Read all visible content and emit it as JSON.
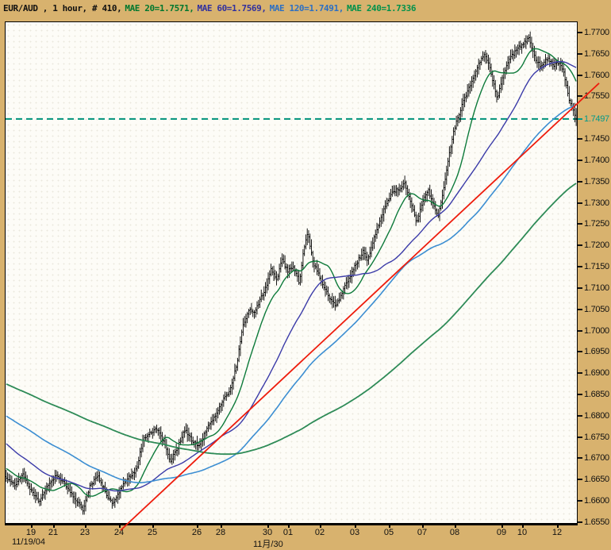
{
  "title": {
    "symbol": "EUR/AUD , 1 hour, # 410,",
    "ma_labels": [
      {
        "text": "MAE 20=1.7571,",
        "color": "#00772e"
      },
      {
        "text": "MAE 60=1.7569,",
        "color": "#30309e"
      },
      {
        "text": "MAE 120=1.7491,",
        "color": "#2b6fc4"
      },
      {
        "text": "MAE 240=1.7336",
        "color": "#00914b"
      }
    ]
  },
  "chart_data": {
    "type": "candlestick",
    "instrument": "EUR/AUD",
    "timeframe": "1 hour",
    "bars_count": 410,
    "y_axis": {
      "value_at_top": 1.77242,
      "value_at_bottom": 1.6548,
      "ticks": [
        {
          "label": "1.7700",
          "value": 1.77,
          "color": "#111111"
        },
        {
          "label": "1.7650",
          "value": 1.765,
          "color": "#111111"
        },
        {
          "label": "1.7600",
          "value": 1.76,
          "color": "#111111"
        },
        {
          "label": "1.7550",
          "value": 1.755,
          "color": "#111111"
        },
        {
          "label": "1.7497",
          "value": 1.7497,
          "color": "#00998a"
        },
        {
          "label": "1.7450",
          "value": 1.745,
          "color": "#111111"
        },
        {
          "label": "1.7400",
          "value": 1.74,
          "color": "#111111"
        },
        {
          "label": "1.7350",
          "value": 1.735,
          "color": "#111111"
        },
        {
          "label": "1.7300",
          "value": 1.73,
          "color": "#111111"
        },
        {
          "label": "1.7250",
          "value": 1.725,
          "color": "#111111"
        },
        {
          "label": "1.7200",
          "value": 1.72,
          "color": "#111111"
        },
        {
          "label": "1.7150",
          "value": 1.715,
          "color": "#111111"
        },
        {
          "label": "1.7100",
          "value": 1.71,
          "color": "#111111"
        },
        {
          "label": "1.7050",
          "value": 1.705,
          "color": "#111111"
        },
        {
          "label": "1.7000",
          "value": 1.7,
          "color": "#111111"
        },
        {
          "label": "1.6950",
          "value": 1.695,
          "color": "#111111"
        },
        {
          "label": "1.6900",
          "value": 1.69,
          "color": "#111111"
        },
        {
          "label": "1.6850",
          "value": 1.685,
          "color": "#111111"
        },
        {
          "label": "1.6800",
          "value": 1.68,
          "color": "#111111"
        },
        {
          "label": "1.6750",
          "value": 1.675,
          "color": "#111111"
        },
        {
          "label": "1.6700",
          "value": 1.67,
          "color": "#111111"
        },
        {
          "label": "1.6650",
          "value": 1.665,
          "color": "#111111"
        },
        {
          "label": "1.6600",
          "value": 1.66,
          "color": "#111111"
        },
        {
          "label": "1.6550",
          "value": 1.655,
          "color": "#111111"
        }
      ]
    },
    "x_axis": {
      "labels": [
        {
          "text": "19",
          "f": 0.044
        },
        {
          "text": "21",
          "f": 0.083
        },
        {
          "text": "23",
          "f": 0.139
        },
        {
          "text": "24",
          "f": 0.199
        },
        {
          "text": "25",
          "f": 0.257
        },
        {
          "text": "26",
          "f": 0.335
        },
        {
          "text": "28",
          "f": 0.376
        },
        {
          "text": "30",
          "f": 0.458
        },
        {
          "text": "01",
          "f": 0.494
        },
        {
          "text": "02",
          "f": 0.55
        },
        {
          "text": "03",
          "f": 0.611
        },
        {
          "text": "05",
          "f": 0.671
        },
        {
          "text": "07",
          "f": 0.729
        },
        {
          "text": "08",
          "f": 0.786
        },
        {
          "text": "09",
          "f": 0.868
        },
        {
          "text": "10",
          "f": 0.904
        },
        {
          "text": "12",
          "f": 0.965
        }
      ],
      "sub_labels": [
        {
          "text": "11/19/04",
          "f": 0.044
        },
        {
          "text": "11月/30",
          "f": 0.458
        }
      ]
    },
    "dashed_level": {
      "value": 1.7497,
      "color": "#00927a"
    },
    "trendline": {
      "color": "#ee1c0c",
      "f1": 0.2014,
      "price1": 1.6531,
      "f2": 1.0389,
      "price2": 1.7581
    },
    "mas": [
      {
        "period": 20,
        "end_value": 1.7571,
        "color": "#0d7a3a",
        "width": 1.4
      },
      {
        "period": 60,
        "end_value": 1.7569,
        "color": "#3b3ba8",
        "width": 1.4
      },
      {
        "period": 120,
        "end_value": 1.7491,
        "color": "#3c8ed2",
        "width": 1.6
      },
      {
        "period": 240,
        "end_value": 1.7336,
        "color": "#2e8b57",
        "width": 1.8
      }
    ],
    "close_noise": 0.0008,
    "wick_min": 0.0004,
    "wick_noise": 0.0013,
    "price_path": [
      [
        0.0,
        1.6655
      ],
      [
        0.015,
        1.6638
      ],
      [
        0.03,
        1.6662
      ],
      [
        0.045,
        1.662
      ],
      [
        0.058,
        1.6598
      ],
      [
        0.072,
        1.6638
      ],
      [
        0.088,
        1.6662
      ],
      [
        0.104,
        1.6638
      ],
      [
        0.12,
        1.6605
      ],
      [
        0.135,
        1.6578
      ],
      [
        0.148,
        1.664
      ],
      [
        0.162,
        1.6656
      ],
      [
        0.175,
        1.6618
      ],
      [
        0.186,
        1.6592
      ],
      [
        0.2,
        1.6628
      ],
      [
        0.214,
        1.6655
      ],
      [
        0.228,
        1.6672
      ],
      [
        0.24,
        1.6742
      ],
      [
        0.252,
        1.676
      ],
      [
        0.264,
        1.6768
      ],
      [
        0.276,
        1.6738
      ],
      [
        0.288,
        1.6692
      ],
      [
        0.3,
        1.6722
      ],
      [
        0.312,
        1.6768
      ],
      [
        0.326,
        1.6742
      ],
      [
        0.338,
        1.6726
      ],
      [
        0.352,
        1.6772
      ],
      [
        0.366,
        1.68
      ],
      [
        0.38,
        1.6836
      ],
      [
        0.394,
        1.6864
      ],
      [
        0.405,
        1.6925
      ],
      [
        0.415,
        1.701
      ],
      [
        0.425,
        1.705
      ],
      [
        0.435,
        1.704
      ],
      [
        0.445,
        1.7072
      ],
      [
        0.455,
        1.71
      ],
      [
        0.465,
        1.7145
      ],
      [
        0.475,
        1.7118
      ],
      [
        0.484,
        1.7168
      ],
      [
        0.494,
        1.7138
      ],
      [
        0.504,
        1.7152
      ],
      [
        0.514,
        1.7112
      ],
      [
        0.522,
        1.7188
      ],
      [
        0.529,
        1.7235
      ],
      [
        0.538,
        1.716
      ],
      [
        0.551,
        1.7122
      ],
      [
        0.565,
        1.7082
      ],
      [
        0.578,
        1.7058
      ],
      [
        0.59,
        1.7092
      ],
      [
        0.602,
        1.7122
      ],
      [
        0.614,
        1.7158
      ],
      [
        0.626,
        1.7185
      ],
      [
        0.634,
        1.7162
      ],
      [
        0.645,
        1.7215
      ],
      [
        0.656,
        1.7262
      ],
      [
        0.668,
        1.73
      ],
      [
        0.68,
        1.7328
      ],
      [
        0.69,
        1.7332
      ],
      [
        0.7,
        1.7346
      ],
      [
        0.71,
        1.73
      ],
      [
        0.72,
        1.7252
      ],
      [
        0.73,
        1.73
      ],
      [
        0.74,
        1.733
      ],
      [
        0.75,
        1.7296
      ],
      [
        0.757,
        1.7268
      ],
      [
        0.765,
        1.7312
      ],
      [
        0.775,
        1.74
      ],
      [
        0.785,
        1.7468
      ],
      [
        0.8,
        1.7532
      ],
      [
        0.815,
        1.7578
      ],
      [
        0.828,
        1.7622
      ],
      [
        0.84,
        1.7652
      ],
      [
        0.852,
        1.7598
      ],
      [
        0.862,
        1.7545
      ],
      [
        0.872,
        1.7602
      ],
      [
        0.885,
        1.7642
      ],
      [
        0.898,
        1.7662
      ],
      [
        0.917,
        1.7688
      ],
      [
        0.928,
        1.7638
      ],
      [
        0.94,
        1.7618
      ],
      [
        0.95,
        1.7642
      ],
      [
        0.96,
        1.7622
      ],
      [
        0.97,
        1.7628
      ],
      [
        0.979,
        1.7602
      ],
      [
        0.988,
        1.7542
      ],
      [
        1.0,
        1.7497
      ]
    ],
    "history_path": [
      [
        -240,
        1.7
      ],
      [
        -120,
        1.69
      ],
      [
        -60,
        1.683
      ],
      [
        -20,
        1.67
      ],
      [
        0,
        1.6655
      ]
    ]
  }
}
